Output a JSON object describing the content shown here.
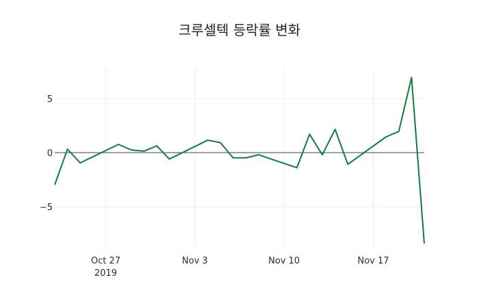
{
  "chart_data": {
    "type": "line",
    "title": "크루셀텍 등락률 변화",
    "xlabel": "",
    "ylabel": "",
    "x": [
      "2019-10-23",
      "2019-10-24",
      "2019-10-25",
      "2019-10-28",
      "2019-10-29",
      "2019-10-30",
      "2019-10-31",
      "2019-11-01",
      "2019-11-04",
      "2019-11-05",
      "2019-11-06",
      "2019-11-07",
      "2019-11-08",
      "2019-11-11",
      "2019-11-12",
      "2019-11-13",
      "2019-11-14",
      "2019-11-15",
      "2019-11-18",
      "2019-11-19",
      "2019-11-20",
      "2019-11-21"
    ],
    "series": [
      {
        "name": "등락률",
        "color": "#0e7c3a",
        "values": [
          -2.97,
          0.32,
          -0.95,
          0.76,
          0.25,
          0.13,
          0.63,
          -0.6,
          1.15,
          0.92,
          -0.48,
          -0.48,
          -0.2,
          -1.4,
          1.7,
          -0.2,
          2.15,
          -1.08,
          1.45,
          1.95,
          6.95,
          -8.4
        ]
      }
    ],
    "ylim": [
      -8.67,
      7.78
    ],
    "xlim": [
      "2019-10-23",
      "2019-11-21"
    ],
    "y_ticks": [
      {
        "value": 5,
        "label": "5"
      },
      {
        "value": 0,
        "label": "0"
      },
      {
        "value": -5,
        "label": "−5"
      }
    ],
    "x_ticks": [
      {
        "date": "2019-10-27",
        "label": "Oct 27",
        "sublabel": "2019"
      },
      {
        "date": "2019-11-03",
        "label": "Nov 3",
        "sublabel": ""
      },
      {
        "date": "2019-11-10",
        "label": "Nov 10",
        "sublabel": ""
      },
      {
        "date": "2019-11-17",
        "label": "Nov 17",
        "sublabel": ""
      }
    ],
    "grid": true,
    "zero_line": true,
    "legend": "none"
  }
}
